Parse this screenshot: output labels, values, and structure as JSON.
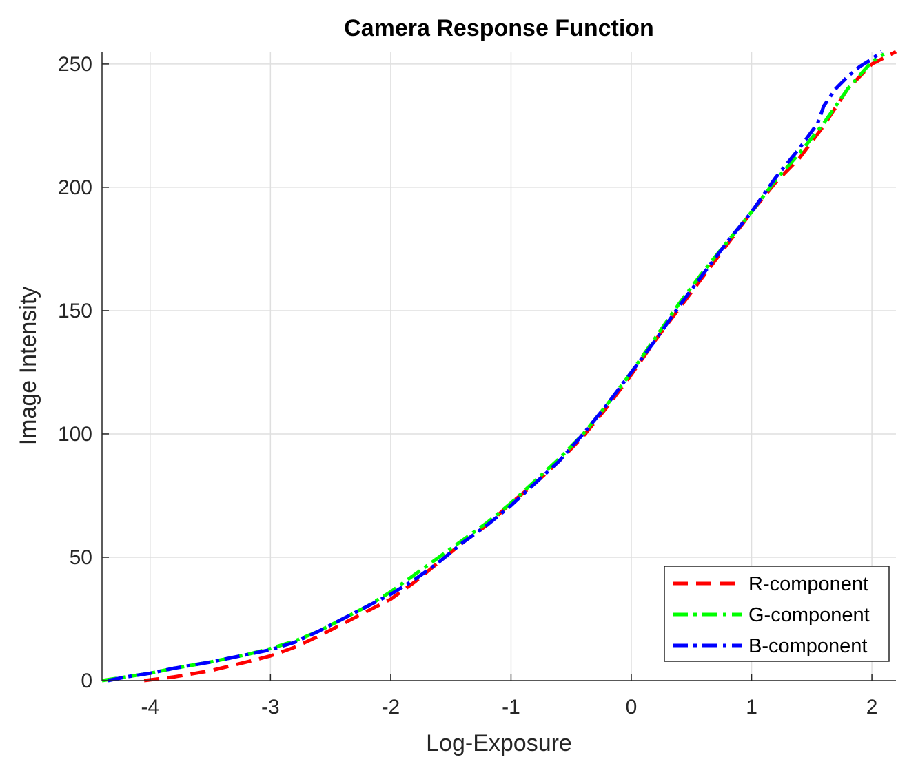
{
  "chart_data": {
    "type": "line",
    "title": "Camera Response Function",
    "xlabel": "Log-Exposure",
    "ylabel": "Image Intensity",
    "xlim": [
      -4.4,
      2.2
    ],
    "ylim": [
      0,
      255
    ],
    "xticks": [
      -4,
      -3,
      -2,
      -1,
      0,
      1,
      2
    ],
    "yticks": [
      0,
      50,
      100,
      150,
      200,
      250
    ],
    "xtick_labels": [
      "-4",
      "-3",
      "-2",
      "-1",
      "0",
      "1",
      "2"
    ],
    "ytick_labels": [
      "0",
      "50",
      "100",
      "150",
      "200",
      "250"
    ],
    "grid": true,
    "legend_position": "bottom-right",
    "series": [
      {
        "name": "R-component",
        "color": "#ff0000",
        "style": "dashed",
        "x": [
          -4.05,
          -3.8,
          -3.5,
          -3.2,
          -3.0,
          -2.8,
          -2.6,
          -2.4,
          -2.2,
          -2.0,
          -1.8,
          -1.6,
          -1.4,
          -1.2,
          -1.0,
          -0.8,
          -0.6,
          -0.4,
          -0.2,
          0.0,
          0.2,
          0.4,
          0.6,
          0.8,
          1.0,
          1.2,
          1.4,
          1.6,
          1.8,
          2.0,
          2.2
        ],
        "y": [
          0,
          1.5,
          4,
          7.5,
          10,
          13.5,
          18,
          23,
          28,
          33,
          40,
          48,
          56,
          63,
          72,
          80,
          89,
          99,
          111,
          124,
          138,
          151,
          164,
          177,
          190,
          202,
          212,
          225,
          240,
          250,
          255
        ]
      },
      {
        "name": "G-component",
        "color": "#00ff00",
        "style": "dash-dot",
        "x": [
          -4.4,
          -4.2,
          -4.0,
          -3.8,
          -3.5,
          -3.2,
          -3.0,
          -2.8,
          -2.6,
          -2.4,
          -2.2,
          -2.0,
          -1.8,
          -1.6,
          -1.4,
          -1.2,
          -1.0,
          -0.8,
          -0.6,
          -0.4,
          -0.2,
          0.0,
          0.2,
          0.4,
          0.6,
          0.8,
          1.0,
          1.2,
          1.4,
          1.6,
          1.8,
          2.0,
          2.1
        ],
        "y": [
          0,
          1.5,
          3,
          5,
          7.5,
          10.5,
          13,
          16,
          20,
          25,
          30,
          36,
          43,
          50,
          57,
          64,
          72,
          81,
          90,
          100,
          112,
          125,
          139,
          153,
          166,
          178,
          190,
          203,
          214,
          226,
          240,
          251,
          254
        ]
      },
      {
        "name": "B-component",
        "color": "#0000ff",
        "style": "dash-dot",
        "x": [
          -4.35,
          -4.2,
          -4.0,
          -3.8,
          -3.5,
          -3.2,
          -3.0,
          -2.8,
          -2.6,
          -2.4,
          -2.2,
          -2.0,
          -1.8,
          -1.6,
          -1.4,
          -1.2,
          -1.0,
          -0.8,
          -0.6,
          -0.4,
          -0.2,
          0.0,
          0.2,
          0.4,
          0.6,
          0.8,
          1.0,
          1.2,
          1.4,
          1.55,
          1.6,
          1.7,
          1.8,
          1.9,
          2.0,
          2.08
        ],
        "y": [
          0,
          1.5,
          3,
          5,
          7.5,
          10.5,
          12.5,
          15.5,
          20,
          25,
          30,
          35,
          41,
          48,
          56,
          63,
          71,
          80,
          89,
          100,
          112,
          125,
          138,
          152,
          165,
          178,
          190,
          204,
          216,
          226,
          233,
          240,
          245,
          249,
          252,
          255
        ]
      }
    ]
  }
}
